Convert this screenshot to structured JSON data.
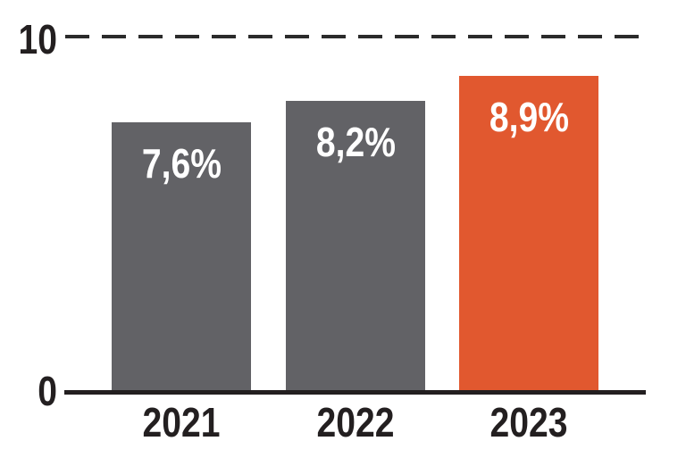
{
  "chart_data": {
    "type": "bar",
    "categories": [
      "2021",
      "2022",
      "2023"
    ],
    "values": [
      7.6,
      8.2,
      8.9
    ],
    "value_labels": [
      "7,6%",
      "8,2%",
      "8,9%"
    ],
    "bar_colors": [
      "#626266",
      "#626266",
      "#E1582F"
    ],
    "highlight_category": "2023",
    "title": "",
    "xlabel": "",
    "ylabel": "",
    "ylim": [
      0,
      10
    ],
    "yticks": [
      0,
      10
    ],
    "ytick_labels": [
      "0",
      "10"
    ],
    "gridlines": [
      {
        "value": 10,
        "style": "dashed"
      }
    ],
    "legend": "none",
    "grid": "single-dashed-top-line"
  },
  "colors": {
    "bar_gray": "#626266",
    "bar_highlight_orange": "#E1582F",
    "axis_black": "#231F20",
    "gridline_dark": "#2B2B2B",
    "value_label_white": "#FFFFFF",
    "background": "#FFFFFF"
  }
}
